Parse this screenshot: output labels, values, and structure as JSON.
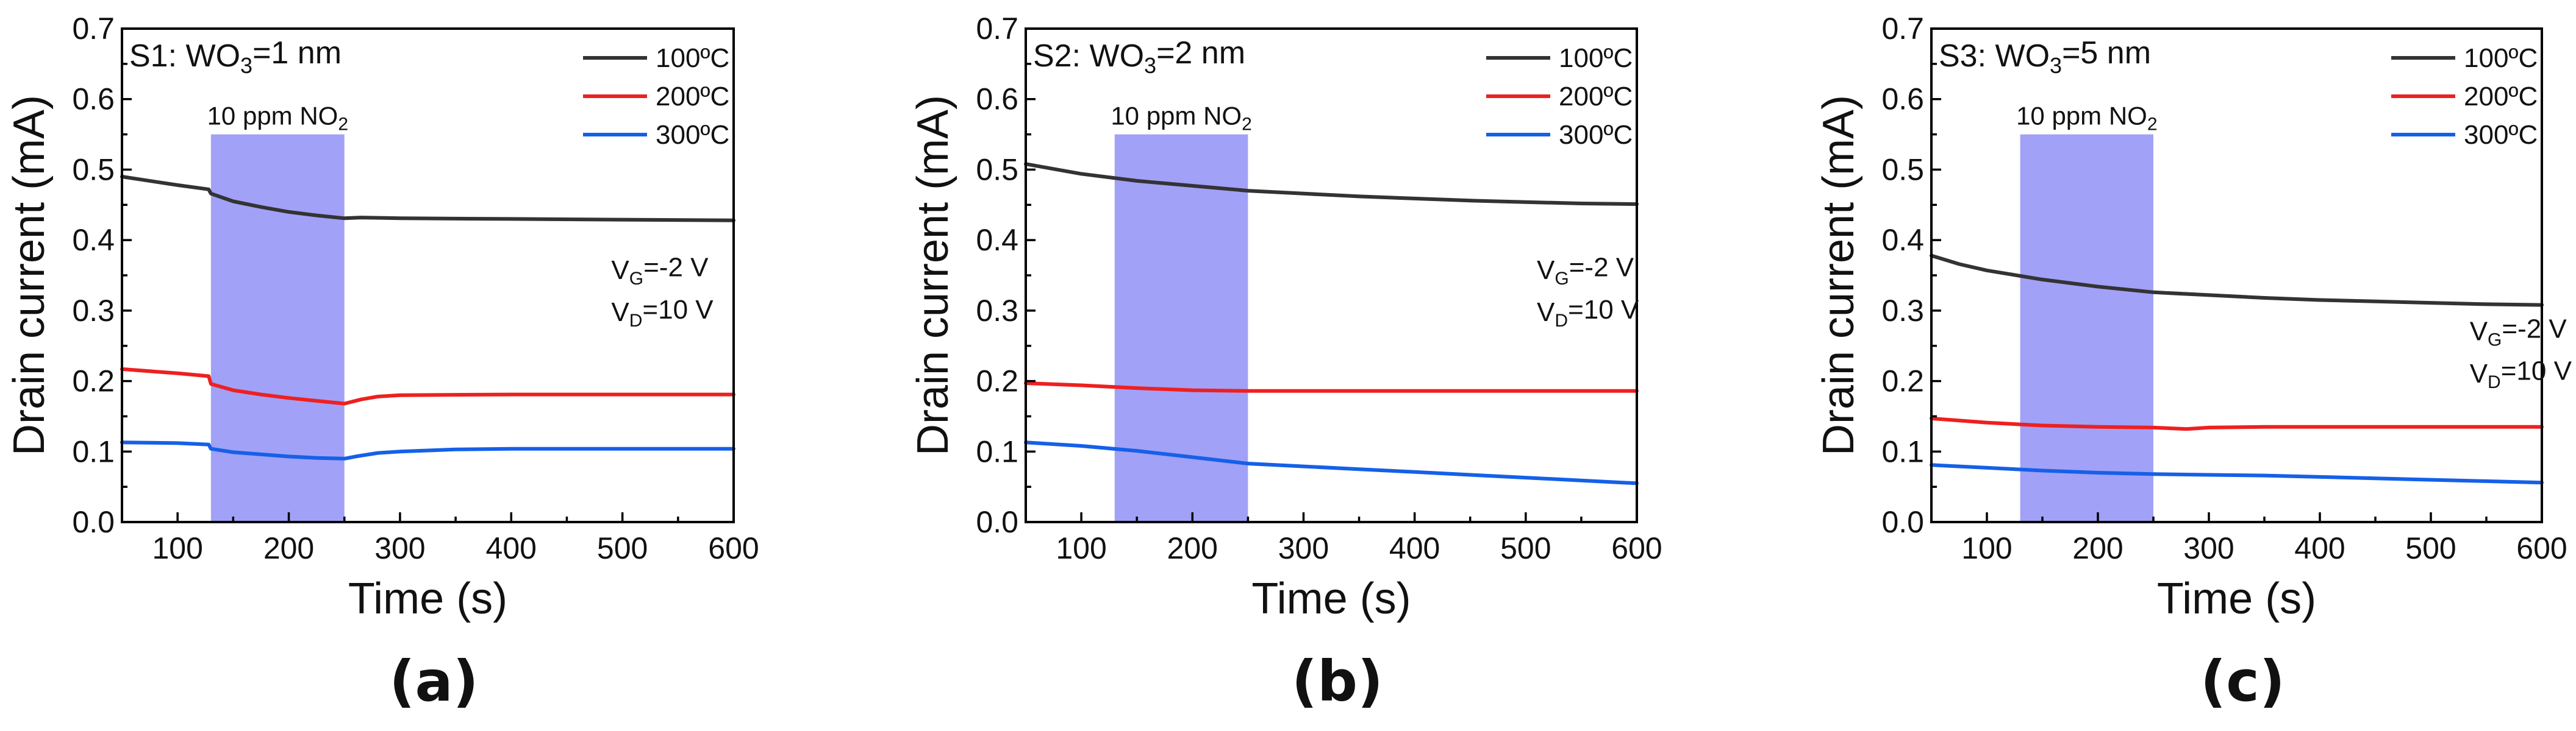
{
  "chart_data": [
    {
      "type": "line",
      "panel_label": "(a)",
      "title": {
        "prefix": "S1: WO",
        "sub": "3",
        "suffix": "=1 nm"
      },
      "xlabel": "Time (s)",
      "ylabel": "Drain current (mA)",
      "xlim": [
        50,
        600
      ],
      "ylim": [
        0.0,
        0.7
      ],
      "xticks": [
        100,
        200,
        300,
        400,
        500,
        600
      ],
      "xtick_labels": [
        "100",
        "200",
        "300",
        "400",
        "500",
        "600"
      ],
      "yticks": [
        0.0,
        0.1,
        0.2,
        0.3,
        0.4,
        0.5,
        0.6,
        0.7
      ],
      "ytick_labels": [
        "0.0",
        "0.1",
        "0.2",
        "0.3",
        "0.4",
        "0.5",
        "0.6",
        "0.7"
      ],
      "grid": false,
      "legend_position": "top-right",
      "exposure": {
        "start": 130,
        "end": 250,
        "label_prefix": "10 ppm NO",
        "label_sub": "2",
        "color": "#9c9cf8"
      },
      "bias_note": {
        "vg_prefix": "V",
        "vg_sub": "G",
        "vg_value": "=-2 V",
        "vd_prefix": "V",
        "vd_sub": "D",
        "vd_value": "=10 V",
        "anchor_x": 490,
        "vg_y": 0.345,
        "vd_y": 0.285
      },
      "series": [
        {
          "name": "100ºC",
          "color": "#333333",
          "x": [
            50,
            100,
            128,
            130,
            150,
            175,
            200,
            225,
            250,
            265,
            300,
            400,
            500,
            600
          ],
          "y": [
            0.49,
            0.478,
            0.472,
            0.466,
            0.455,
            0.447,
            0.44,
            0.435,
            0.431,
            0.432,
            0.431,
            0.43,
            0.429,
            0.428
          ]
        },
        {
          "name": "200ºC",
          "color": "#ee2020",
          "x": [
            50,
            100,
            128,
            130,
            150,
            175,
            200,
            225,
            250,
            265,
            280,
            300,
            400,
            500,
            600
          ],
          "y": [
            0.217,
            0.211,
            0.207,
            0.196,
            0.187,
            0.181,
            0.176,
            0.172,
            0.168,
            0.174,
            0.178,
            0.18,
            0.181,
            0.181,
            0.181
          ]
        },
        {
          "name": "300ºC",
          "color": "#1560e8",
          "x": [
            50,
            100,
            128,
            130,
            150,
            175,
            200,
            225,
            250,
            260,
            280,
            300,
            350,
            400,
            500,
            600
          ],
          "y": [
            0.113,
            0.112,
            0.11,
            0.104,
            0.099,
            0.096,
            0.093,
            0.091,
            0.09,
            0.093,
            0.098,
            0.1,
            0.103,
            0.104,
            0.104,
            0.104
          ]
        }
      ]
    },
    {
      "type": "line",
      "panel_label": "(b)",
      "title": {
        "prefix": "S2: WO",
        "sub": "3",
        "suffix": "=2 nm"
      },
      "xlabel": "Time (s)",
      "ylabel": "Drain current (mA)",
      "xlim": [
        50,
        600
      ],
      "ylim": [
        0.0,
        0.7
      ],
      "xticks": [
        100,
        200,
        300,
        400,
        500,
        600
      ],
      "xtick_labels": [
        "100",
        "200",
        "300",
        "400",
        "500",
        "600"
      ],
      "yticks": [
        0.0,
        0.1,
        0.2,
        0.3,
        0.4,
        0.5,
        0.6,
        0.7
      ],
      "ytick_labels": [
        "0.0",
        "0.1",
        "0.2",
        "0.3",
        "0.4",
        "0.5",
        "0.6",
        "0.7"
      ],
      "grid": false,
      "legend_position": "top-right",
      "exposure": {
        "start": 130,
        "end": 250,
        "label_prefix": "10 ppm NO",
        "label_sub": "2",
        "color": "#9c9cf8"
      },
      "bias_note": {
        "vg_prefix": "V",
        "vg_sub": "G",
        "vg_value": "=-2 V",
        "vd_prefix": "V",
        "vd_sub": "D",
        "vd_value": "=10 V",
        "anchor_x": 510,
        "vg_y": 0.345,
        "vd_y": 0.285
      },
      "series": [
        {
          "name": "100ºC",
          "color": "#333333",
          "x": [
            50,
            100,
            150,
            200,
            250,
            300,
            350,
            400,
            450,
            500,
            550,
            600
          ],
          "y": [
            0.508,
            0.494,
            0.484,
            0.477,
            0.47,
            0.466,
            0.462,
            0.459,
            0.456,
            0.454,
            0.452,
            0.451
          ]
        },
        {
          "name": "200ºC",
          "color": "#ee2020",
          "x": [
            50,
            100,
            150,
            200,
            250,
            300,
            400,
            500,
            600
          ],
          "y": [
            0.197,
            0.194,
            0.19,
            0.187,
            0.186,
            0.186,
            0.186,
            0.186,
            0.186
          ]
        },
        {
          "name": "300ºC",
          "color": "#1560e8",
          "x": [
            50,
            100,
            150,
            200,
            250,
            300,
            350,
            400,
            450,
            500,
            550,
            600
          ],
          "y": [
            0.113,
            0.108,
            0.101,
            0.092,
            0.083,
            0.079,
            0.075,
            0.071,
            0.067,
            0.063,
            0.059,
            0.055
          ]
        }
      ]
    },
    {
      "type": "line",
      "panel_label": "(c)",
      "title": {
        "prefix": "S3: WO",
        "sub": "3",
        "suffix": "=5 nm"
      },
      "xlabel": "Time (s)",
      "ylabel": "Drain current (mA)",
      "xlim": [
        50,
        600
      ],
      "ylim": [
        0.0,
        0.7
      ],
      "xticks": [
        100,
        200,
        300,
        400,
        500,
        600
      ],
      "xtick_labels": [
        "100",
        "200",
        "300",
        "400",
        "500",
        "600"
      ],
      "yticks": [
        0.0,
        0.1,
        0.2,
        0.3,
        0.4,
        0.5,
        0.6,
        0.7
      ],
      "ytick_labels": [
        "0.0",
        "0.1",
        "0.2",
        "0.3",
        "0.4",
        "0.5",
        "0.6",
        "0.7"
      ],
      "grid": false,
      "legend_position": "top-right",
      "exposure": {
        "start": 130,
        "end": 250,
        "label_prefix": "10 ppm NO",
        "label_sub": "2",
        "color": "#9c9cf8"
      },
      "bias_note": {
        "vg_prefix": "V",
        "vg_sub": "G",
        "vg_value": "=-2 V",
        "vd_prefix": "V",
        "vd_sub": "D",
        "vd_value": "=10 V",
        "anchor_x": 535,
        "vg_y": 0.258,
        "vd_y": 0.198
      },
      "series": [
        {
          "name": "100ºC",
          "color": "#333333",
          "x": [
            50,
            75,
            100,
            150,
            200,
            250,
            300,
            350,
            400,
            450,
            500,
            550,
            600
          ],
          "y": [
            0.378,
            0.366,
            0.357,
            0.344,
            0.334,
            0.326,
            0.322,
            0.318,
            0.315,
            0.313,
            0.311,
            0.309,
            0.308
          ]
        },
        {
          "name": "200ºC",
          "color": "#ee2020",
          "x": [
            50,
            100,
            150,
            200,
            250,
            280,
            300,
            350,
            400,
            500,
            600
          ],
          "y": [
            0.147,
            0.141,
            0.137,
            0.135,
            0.134,
            0.132,
            0.134,
            0.135,
            0.135,
            0.135,
            0.135
          ]
        },
        {
          "name": "300ºC",
          "color": "#1560e8",
          "x": [
            50,
            100,
            150,
            200,
            250,
            300,
            350,
            400,
            450,
            500,
            550,
            600
          ],
          "y": [
            0.081,
            0.077,
            0.073,
            0.07,
            0.068,
            0.067,
            0.066,
            0.064,
            0.062,
            0.06,
            0.058,
            0.056
          ]
        }
      ]
    }
  ]
}
